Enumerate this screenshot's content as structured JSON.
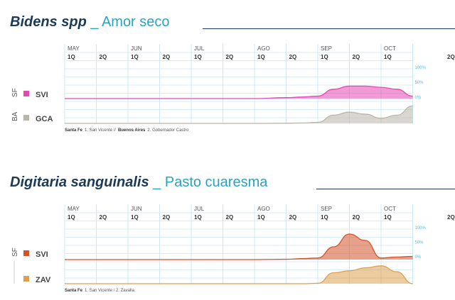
{
  "charts": [
    {
      "title_species": "Bidens spp",
      "title_sep": "_",
      "title_common": "Amor seco",
      "footnote": [
        {
          "bold": "Santa Fe",
          "text": "1. San Vicente  //"
        },
        {
          "bold": "Buenos Aires",
          "text": "2. Gobernador Castro"
        }
      ],
      "groups": [
        {
          "region": "SF",
          "code": "SVI",
          "color": "#e448b4"
        },
        {
          "region": "BA",
          "code": "GCA",
          "color": "#b9b5aa"
        }
      ]
    },
    {
      "title_species": "Digitaria sanguinalis",
      "title_sep": "_",
      "title_common": "Pasto cuaresma",
      "footnote": [
        {
          "bold": "Santa Fe",
          "text": "1. San Vicente / 2. Zavalla"
        }
      ],
      "groups": [
        {
          "region": "SF",
          "code": "SVI",
          "color": "#d4532a"
        },
        {
          "region": "",
          "code": "ZAV",
          "color": "#dca050"
        }
      ]
    }
  ],
  "months": [
    "MAY",
    "",
    "JUN",
    "",
    "JUL",
    "",
    "AGO",
    "",
    "SEP",
    "",
    "OCT",
    ""
  ],
  "quincenas": [
    "1Q",
    "2Q",
    "1Q",
    "2Q",
    "1Q",
    "2Q",
    "1Q",
    "2Q",
    "1Q",
    "2Q",
    "1Q",
    "2Q"
  ],
  "pct_labels": [
    "100%",
    "50%",
    "0%"
  ],
  "chart_data": [
    {
      "type": "area",
      "title": "Bidens spp _ Amor seco",
      "x": [
        0,
        1,
        2,
        3,
        4,
        5,
        6,
        7,
        7.5,
        8,
        8.5,
        9,
        9.5,
        10,
        10.5,
        11
      ],
      "series": [
        {
          "name": "SVI",
          "values": [
            0,
            0,
            0,
            0,
            0,
            0,
            0,
            3,
            5,
            8,
            30,
            40,
            40,
            36,
            30,
            8
          ]
        },
        {
          "name": "GCA",
          "values": [
            0,
            0,
            0,
            0,
            0,
            0,
            0,
            1,
            2,
            5,
            40,
            55,
            45,
            25,
            40,
            85
          ]
        }
      ],
      "ylim": [
        0,
        100
      ],
      "ylabel": "%"
    },
    {
      "type": "area",
      "title": "Digitaria sanguinalis _ Pasto cuaresma",
      "x": [
        0,
        1,
        2,
        3,
        4,
        5,
        6,
        7,
        7.5,
        8,
        8.5,
        9,
        9.5,
        10,
        10.5,
        11
      ],
      "series": [
        {
          "name": "SVI",
          "values": [
            0,
            0,
            0,
            0,
            0,
            0,
            0,
            1,
            3,
            5,
            40,
            80,
            60,
            5,
            8,
            10
          ]
        },
        {
          "name": "ZAV",
          "values": [
            0,
            0,
            0,
            0,
            0,
            0,
            0,
            0,
            0,
            2,
            55,
            65,
            80,
            90,
            60,
            0
          ]
        }
      ],
      "ylim": [
        0,
        100
      ],
      "ylabel": "%"
    }
  ]
}
